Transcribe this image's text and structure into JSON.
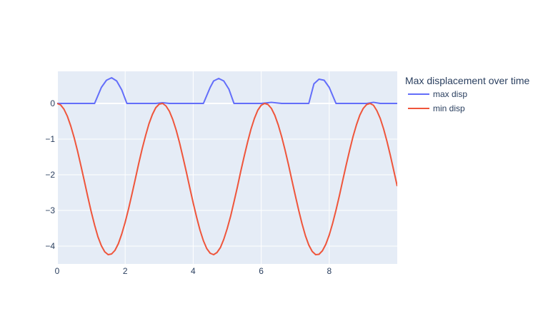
{
  "chart_data": {
    "type": "line",
    "title": "",
    "xlabel": "",
    "ylabel": "",
    "xlim": [
      0,
      10
    ],
    "ylim": [
      -4.5,
      0.9
    ],
    "x_ticks": [
      0,
      2,
      4,
      6,
      8
    ],
    "x_tick_labels": [
      "0",
      "2",
      "4",
      "6",
      "8"
    ],
    "y_ticks": [
      0,
      -1,
      -2,
      -3,
      -4
    ],
    "y_tick_labels": [
      "0",
      "−1",
      "−2",
      "−3",
      "−4"
    ],
    "grid": true,
    "legend": {
      "title": "Max displacement over time",
      "placement": "right"
    },
    "series": [
      {
        "name": "max disp",
        "color": "#636efa",
        "x": [
          0,
          1.1,
          1.3,
          1.45,
          1.6,
          1.75,
          1.9,
          2.05,
          2.9,
          3.1,
          3.3,
          4.3,
          4.5,
          4.6,
          4.75,
          4.9,
          5.05,
          5.2,
          6.0,
          6.3,
          6.6,
          7.0,
          7.4,
          7.55,
          7.7,
          7.85,
          8.0,
          8.2,
          8.4,
          9.1,
          9.3,
          9.5,
          10.0
        ],
        "y": [
          0,
          0,
          0.45,
          0.65,
          0.72,
          0.63,
          0.38,
          0,
          0,
          0.02,
          0,
          0,
          0.45,
          0.63,
          0.7,
          0.63,
          0.4,
          0,
          0,
          0.03,
          0,
          0,
          0,
          0.55,
          0.68,
          0.65,
          0.45,
          0,
          0,
          0,
          0.03,
          0,
          0
        ]
      },
      {
        "name": "min disp",
        "color": "#ef553b",
        "x": [
          0,
          0.1,
          0.2,
          0.3,
          0.4,
          0.5,
          0.6,
          0.7,
          0.8,
          0.9,
          1.0,
          1.1,
          1.2,
          1.3,
          1.4,
          1.5,
          1.6,
          1.7,
          1.8,
          1.9,
          2.0,
          2.1,
          2.2,
          2.3,
          2.4,
          2.5,
          2.6,
          2.7,
          2.8,
          2.9,
          3.0,
          3.1,
          3.2,
          3.3,
          3.4,
          3.5,
          3.6,
          3.7,
          3.8,
          3.9,
          4.0,
          4.1,
          4.2,
          4.3,
          4.4,
          4.5,
          4.6,
          4.7,
          4.8,
          4.9,
          5.0,
          5.1,
          5.2,
          5.3,
          5.4,
          5.5,
          5.6,
          5.7,
          5.8,
          5.9,
          6.0,
          6.1,
          6.2,
          6.3,
          6.4,
          6.5,
          6.6,
          6.7,
          6.8,
          6.9,
          7.0,
          7.1,
          7.2,
          7.3,
          7.4,
          7.5,
          7.6,
          7.7,
          7.8,
          7.9,
          8.0,
          8.1,
          8.2,
          8.3,
          8.4,
          8.5,
          8.6,
          8.7,
          8.8,
          8.9,
          9.0,
          9.1,
          9.2,
          9.3,
          9.4,
          9.5,
          9.6,
          9.7,
          9.8,
          9.9,
          10.0
        ],
        "y": [
          0,
          -0.04,
          -0.16,
          -0.36,
          -0.63,
          -0.96,
          -1.34,
          -1.75,
          -2.18,
          -2.61,
          -3.03,
          -3.41,
          -3.74,
          -3.99,
          -4.16,
          -4.24,
          -4.22,
          -4.12,
          -3.93,
          -3.66,
          -3.33,
          -2.95,
          -2.54,
          -2.11,
          -1.68,
          -1.27,
          -0.9,
          -0.57,
          -0.31,
          -0.12,
          -0.02,
          0,
          -0.07,
          -0.22,
          -0.45,
          -0.75,
          -1.11,
          -1.51,
          -1.93,
          -2.36,
          -2.79,
          -3.19,
          -3.55,
          -3.85,
          -4.07,
          -4.2,
          -4.24,
          -4.18,
          -4.04,
          -3.81,
          -3.51,
          -3.16,
          -2.76,
          -2.34,
          -1.9,
          -1.48,
          -1.08,
          -0.72,
          -0.42,
          -0.19,
          -0.05,
          0,
          -0.03,
          -0.14,
          -0.33,
          -0.6,
          -0.93,
          -1.3,
          -1.71,
          -2.14,
          -2.57,
          -2.99,
          -3.37,
          -3.71,
          -3.97,
          -4.15,
          -4.24,
          -4.23,
          -4.13,
          -3.95,
          -3.69,
          -3.36,
          -2.99,
          -2.58,
          -2.15,
          -1.72,
          -1.31,
          -0.93,
          -0.6,
          -0.33,
          -0.14,
          -0.03,
          0,
          -0.05,
          -0.2,
          -0.42,
          -0.72,
          -1.07,
          -1.47,
          -1.89,
          -2.32
        ]
      }
    ]
  }
}
